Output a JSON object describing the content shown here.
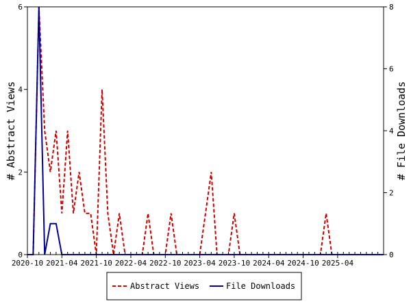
{
  "chart_data": {
    "type": "line",
    "x_unit": "month",
    "x_start": "2020-10",
    "x_end": "2025-12",
    "x_ticks": [
      "2020-10",
      "2021-04",
      "2021-10",
      "2022-04",
      "2022-10",
      "2023-04",
      "2023-10",
      "2024-04",
      "2024-10",
      "2025-04"
    ],
    "y_left": {
      "label": "# Abstract Views",
      "range": [
        0,
        6
      ],
      "ticks": [
        "0",
        "2",
        "4",
        "6"
      ]
    },
    "y_right": {
      "label": "# File Downloads",
      "range": [
        0,
        8
      ],
      "ticks": [
        "0",
        "2",
        "4",
        "6",
        "8"
      ]
    },
    "grid": false,
    "legend_position": "bottom",
    "series": [
      {
        "name": "Abstract Views",
        "axis": "left",
        "color": "#cc0000",
        "style": "dashed",
        "points": [
          [
            "2020-10",
            0
          ],
          [
            "2020-11",
            0
          ],
          [
            "2020-12",
            6
          ],
          [
            "2021-01",
            3
          ],
          [
            "2021-02",
            2
          ],
          [
            "2021-03",
            3
          ],
          [
            "2021-04",
            1
          ],
          [
            "2021-05",
            3
          ],
          [
            "2021-06",
            1
          ],
          [
            "2021-07",
            2
          ],
          [
            "2021-08",
            1
          ],
          [
            "2021-09",
            1
          ],
          [
            "2021-10",
            0
          ],
          [
            "2021-11",
            4
          ],
          [
            "2021-12",
            1
          ],
          [
            "2022-01",
            0
          ],
          [
            "2022-02",
            1
          ],
          [
            "2022-03",
            0
          ],
          [
            "2022-04",
            0
          ],
          [
            "2022-05",
            0
          ],
          [
            "2022-06",
            0
          ],
          [
            "2022-07",
            1
          ],
          [
            "2022-08",
            0
          ],
          [
            "2022-09",
            0
          ],
          [
            "2022-10",
            0
          ],
          [
            "2022-11",
            1
          ],
          [
            "2022-12",
            0
          ],
          [
            "2023-01",
            0
          ],
          [
            "2023-02",
            0
          ],
          [
            "2023-03",
            0
          ],
          [
            "2023-04",
            0
          ],
          [
            "2023-05",
            1
          ],
          [
            "2023-06",
            2
          ],
          [
            "2023-07",
            0
          ],
          [
            "2023-08",
            0
          ],
          [
            "2023-09",
            0
          ],
          [
            "2023-10",
            1
          ],
          [
            "2023-11",
            0
          ],
          [
            "2023-12",
            0
          ],
          [
            "2024-01",
            0
          ],
          [
            "2024-02",
            0
          ],
          [
            "2024-03",
            0
          ],
          [
            "2024-04",
            0
          ],
          [
            "2024-05",
            0
          ],
          [
            "2024-06",
            0
          ],
          [
            "2024-07",
            0
          ],
          [
            "2024-08",
            0
          ],
          [
            "2024-09",
            0
          ],
          [
            "2024-10",
            0
          ],
          [
            "2024-11",
            0
          ],
          [
            "2024-12",
            0
          ],
          [
            "2025-01",
            0
          ],
          [
            "2025-02",
            1
          ],
          [
            "2025-03",
            0
          ],
          [
            "2025-04",
            0
          ],
          [
            "2025-05",
            0
          ],
          [
            "2025-06",
            0
          ],
          [
            "2025-07",
            0
          ],
          [
            "2025-08",
            0
          ],
          [
            "2025-09",
            0
          ],
          [
            "2025-10",
            0
          ],
          [
            "2025-11",
            0
          ],
          [
            "2025-12",
            0
          ]
        ]
      },
      {
        "name": "File Downloads",
        "axis": "right",
        "color": "#000099",
        "style": "solid",
        "points": [
          [
            "2020-10",
            0
          ],
          [
            "2020-11",
            0
          ],
          [
            "2020-12",
            8
          ],
          [
            "2021-01",
            0
          ],
          [
            "2021-02",
            1
          ],
          [
            "2021-03",
            1
          ],
          [
            "2021-04",
            0
          ],
          [
            "2021-05",
            0
          ],
          [
            "2021-06",
            0
          ],
          [
            "2021-07",
            0
          ],
          [
            "2021-08",
            0
          ],
          [
            "2021-09",
            0
          ],
          [
            "2021-10",
            0
          ],
          [
            "2021-11",
            0
          ],
          [
            "2021-12",
            0
          ],
          [
            "2022-01",
            0
          ],
          [
            "2022-02",
            0
          ],
          [
            "2022-03",
            0
          ],
          [
            "2022-04",
            0
          ],
          [
            "2022-05",
            0
          ],
          [
            "2022-06",
            0
          ],
          [
            "2022-07",
            0
          ],
          [
            "2022-08",
            0
          ],
          [
            "2022-09",
            0
          ],
          [
            "2022-10",
            0
          ],
          [
            "2022-11",
            0
          ],
          [
            "2022-12",
            0
          ],
          [
            "2023-01",
            0
          ],
          [
            "2023-02",
            0
          ],
          [
            "2023-03",
            0
          ],
          [
            "2023-04",
            0
          ],
          [
            "2023-05",
            0
          ],
          [
            "2023-06",
            0
          ],
          [
            "2023-07",
            0
          ],
          [
            "2023-08",
            0
          ],
          [
            "2023-09",
            0
          ],
          [
            "2023-10",
            0
          ],
          [
            "2023-11",
            0
          ],
          [
            "2023-12",
            0
          ],
          [
            "2024-01",
            0
          ],
          [
            "2024-02",
            0
          ],
          [
            "2024-03",
            0
          ],
          [
            "2024-04",
            0
          ],
          [
            "2024-05",
            0
          ],
          [
            "2024-06",
            0
          ],
          [
            "2024-07",
            0
          ],
          [
            "2024-08",
            0
          ],
          [
            "2024-09",
            0
          ],
          [
            "2024-10",
            0
          ],
          [
            "2024-11",
            0
          ],
          [
            "2024-12",
            0
          ],
          [
            "2025-01",
            0
          ],
          [
            "2025-02",
            0
          ],
          [
            "2025-03",
            0
          ],
          [
            "2025-04",
            0
          ],
          [
            "2025-05",
            0
          ],
          [
            "2025-06",
            0
          ],
          [
            "2025-07",
            0
          ],
          [
            "2025-08",
            0
          ],
          [
            "2025-09",
            0
          ],
          [
            "2025-10",
            0
          ],
          [
            "2025-11",
            0
          ],
          [
            "2025-12",
            0
          ]
        ]
      }
    ]
  }
}
